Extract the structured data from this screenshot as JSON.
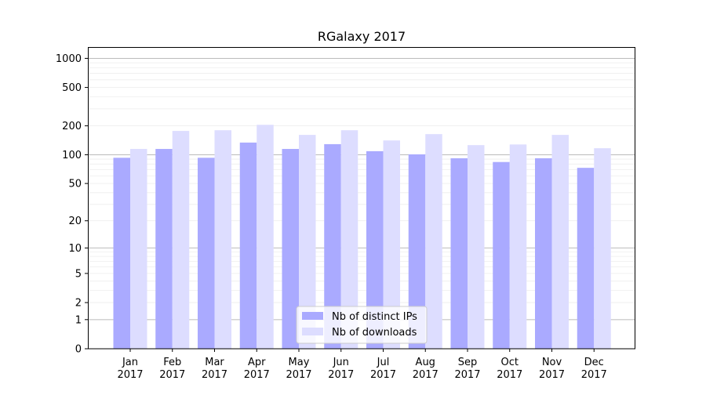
{
  "chart_data": {
    "type": "bar",
    "title": "RGalaxy 2017",
    "xlabel": "",
    "ylabel": "",
    "yscale": "log(1+y)",
    "ylim": [
      0,
      1270
    ],
    "yticks": [
      0,
      1,
      2,
      5,
      10,
      20,
      50,
      100,
      200,
      500,
      1000
    ],
    "grid": true,
    "legend_position": "bottom-center",
    "categories": [
      "Jan\n2017",
      "Feb\n2017",
      "Mar\n2017",
      "Apr\n2017",
      "May\n2017",
      "Jun\n2017",
      "Jul\n2017",
      "Aug\n2017",
      "Sep\n2017",
      "Oct\n2017",
      "Nov\n2017",
      "Dec\n2017"
    ],
    "series": [
      {
        "name": "Nb of distinct IPs",
        "color": "#aaaaff",
        "values": [
          93,
          115,
          93,
          134,
          115,
          129,
          109,
          101,
          92,
          84,
          92,
          73
        ]
      },
      {
        "name": "Nb of downloads",
        "color": "#ddddff",
        "values": [
          115,
          177,
          180,
          205,
          161,
          180,
          141,
          164,
          126,
          128,
          161,
          117
        ]
      }
    ]
  }
}
